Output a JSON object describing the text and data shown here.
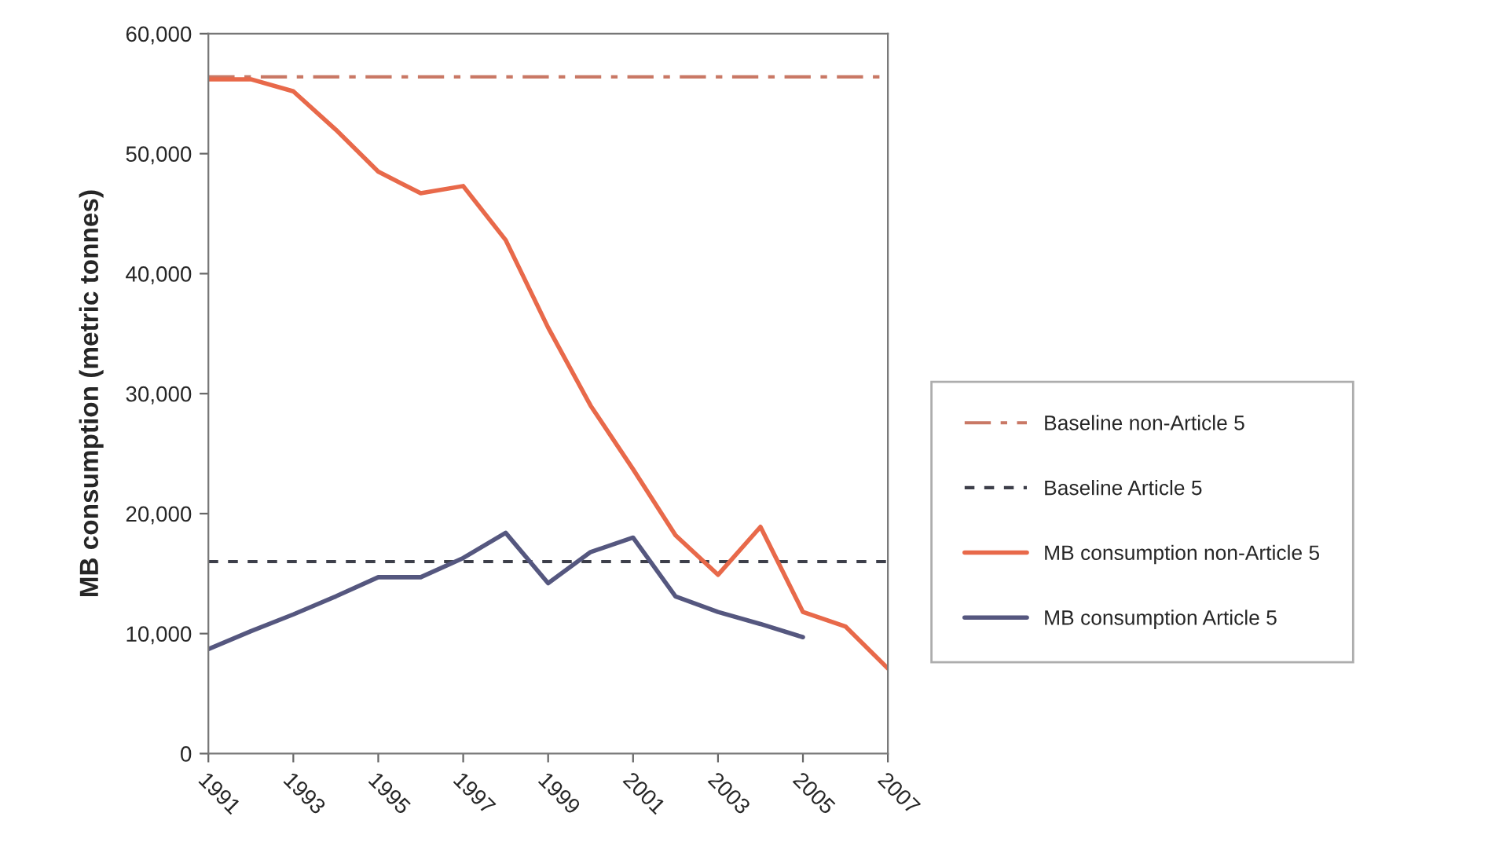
{
  "chart_data": {
    "type": "line",
    "ylabel": "MB consumption (metric tonnes)",
    "xlim": [
      1991,
      2007
    ],
    "xticks": [
      1991,
      1993,
      1995,
      1997,
      1999,
      2001,
      2003,
      2005,
      2007
    ],
    "ylim": [
      0,
      60000
    ],
    "yticks": [
      {
        "value": 0,
        "label": "0"
      },
      {
        "value": 10000,
        "label": "10,000"
      },
      {
        "value": 20000,
        "label": "20,000"
      },
      {
        "value": 30000,
        "label": "30,000"
      },
      {
        "value": 40000,
        "label": "40,000"
      },
      {
        "value": 50000,
        "label": "50,000"
      },
      {
        "value": 60000,
        "label": "60,000"
      }
    ],
    "x": [
      1991,
      1992,
      1993,
      1994,
      1995,
      1996,
      1997,
      1998,
      1999,
      2000,
      2001,
      2002,
      2003,
      2004,
      2005,
      2006,
      2007
    ],
    "grid": false,
    "legend": "right",
    "ref_lines": [
      {
        "axis": "y",
        "value": 56400,
        "label": "Baseline non-Article 5",
        "color": "#c97865",
        "line_style": "dashed"
      },
      {
        "axis": "y",
        "value": 16000,
        "label": "Baseline Article 5",
        "color": "#3d3f4a",
        "line_style": "dotted"
      }
    ],
    "series": [
      {
        "name": "MB consumption non-Article 5",
        "color": "#e8694a",
        "line_style": "solid",
        "values": [
          56200,
          56200,
          55200,
          52000,
          48500,
          46700,
          47300,
          42800,
          35500,
          29000,
          23700,
          18200,
          14900,
          18900,
          11800,
          10600,
          7100
        ]
      },
      {
        "name": "MB consumption Article 5",
        "color": "#55577f",
        "line_style": "solid",
        "values": [
          8700,
          10200,
          11600,
          13100,
          14700,
          14700,
          16300,
          18400,
          14200,
          16800,
          18000,
          13100,
          11800,
          10800,
          9700,
          null,
          null
        ]
      }
    ]
  }
}
